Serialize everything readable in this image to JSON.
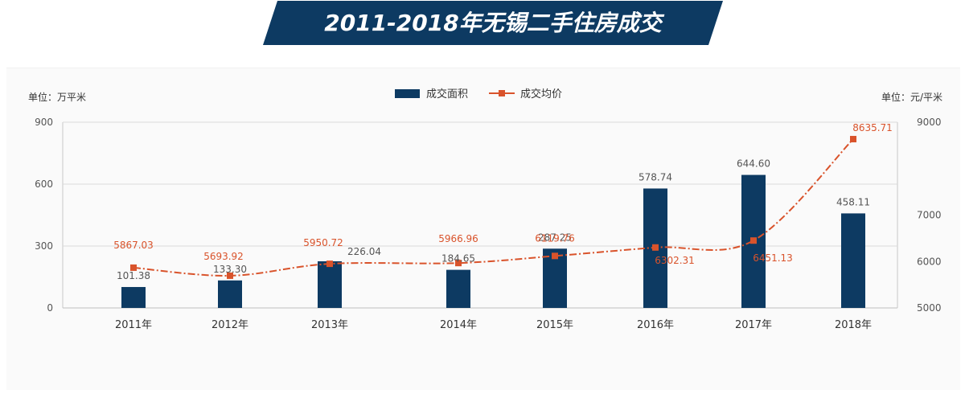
{
  "banner": {
    "title": "2011-2018年无锡二手住房成交"
  },
  "colors": {
    "banner_bg": "#0d3a62",
    "bar": "#0d3a62",
    "line": "#d9532b",
    "axis_text": "#555555",
    "grid": "#d9d9d9"
  },
  "chart_data": {
    "type": "bar",
    "title": "",
    "categories": [
      "2011年",
      "2012年",
      "2013年",
      "2014年",
      "2015年",
      "2016年",
      "2017年",
      "2018年"
    ],
    "series": [
      {
        "name": "成交面积",
        "type": "bar",
        "axis": "left",
        "values": [
          101.38,
          133.3,
          226.04,
          184.65,
          287.25,
          578.74,
          644.6,
          458.11
        ],
        "labels": [
          "101.38",
          "133.30",
          "226.04",
          "184.65",
          "287.25",
          "578.74",
          "644.60",
          "458.11"
        ]
      },
      {
        "name": "成交均价",
        "type": "line",
        "axis": "right",
        "values": [
          5867.03,
          5693.92,
          5950.72,
          5966.96,
          6119.76,
          6302.31,
          6451.13,
          8635.71
        ],
        "labels": [
          "5867.03",
          "5693.92",
          "5950.72",
          "5966.96",
          "6119.76",
          "6302.31",
          "6451.13",
          "8635.71"
        ]
      }
    ],
    "y_left": {
      "unit_label": "单位：万平米",
      "range": [
        0,
        900
      ],
      "ticks": [
        "0",
        "300",
        "600",
        "900"
      ]
    },
    "y_right": {
      "unit_label": "单位：元/平米",
      "range": [
        5000,
        9000
      ],
      "ticks": [
        "5000",
        "6000",
        "7000",
        "9000"
      ]
    },
    "legend": {
      "position": "top-center"
    },
    "grid": true
  }
}
